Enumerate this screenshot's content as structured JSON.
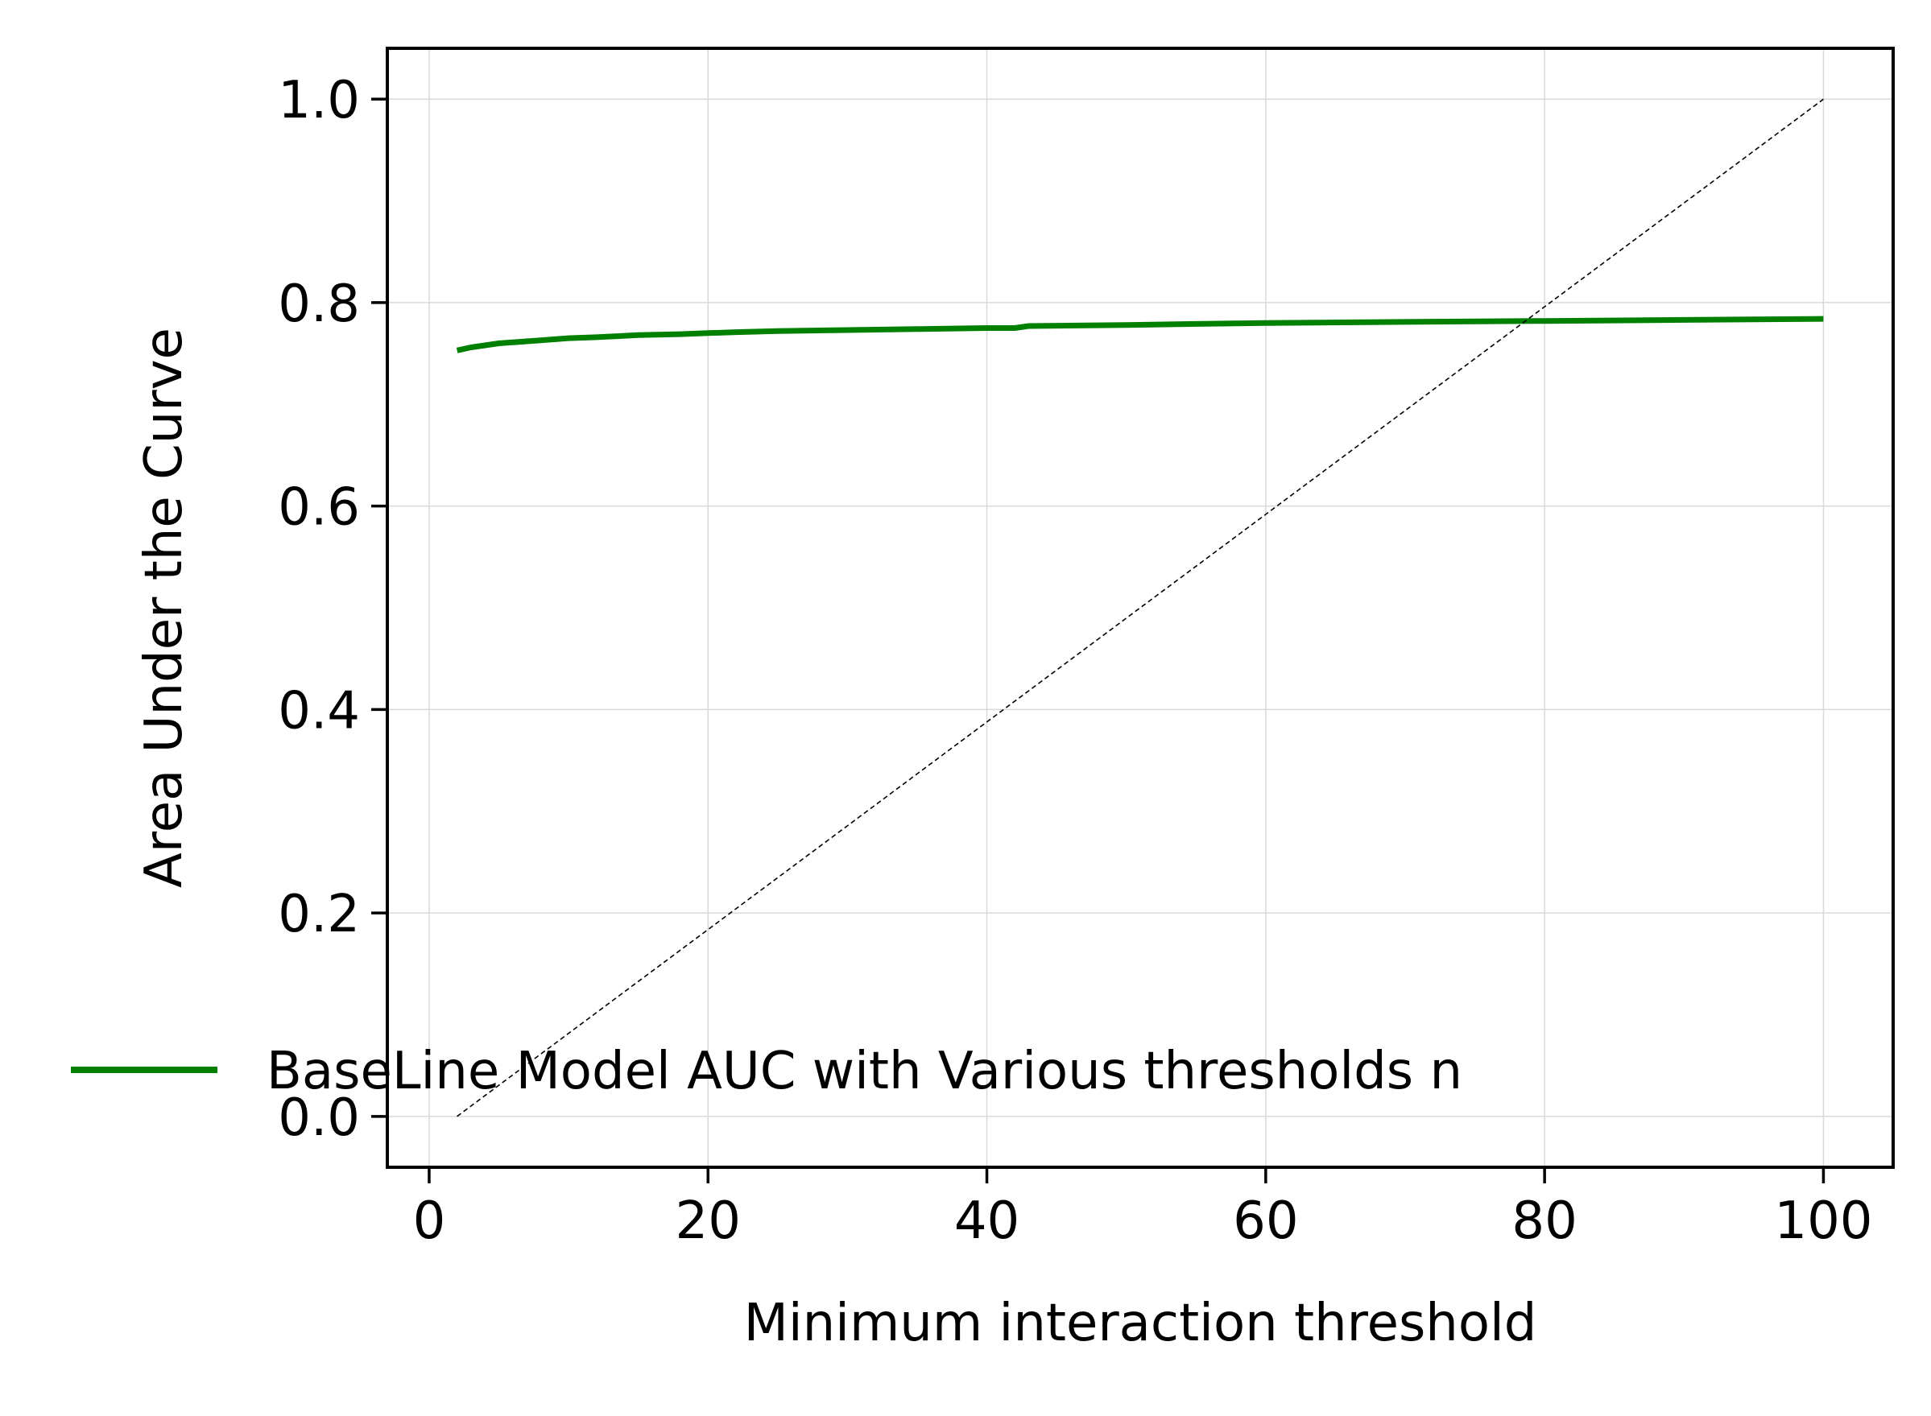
{
  "chart_data": {
    "type": "line",
    "title": "",
    "xlabel": "Minimum interaction threshold",
    "ylabel": "Area Under the Curve",
    "xlim": [
      -3,
      105
    ],
    "ylim": [
      -0.05,
      1.05
    ],
    "xticks": [
      0,
      20,
      40,
      60,
      80,
      100
    ],
    "xtick_labels": [
      "0",
      "20",
      "40",
      "60",
      "80",
      "100"
    ],
    "yticks": [
      0.0,
      0.2,
      0.4,
      0.6,
      0.8,
      1.0
    ],
    "ytick_labels": [
      "0.0",
      "0.2",
      "0.4",
      "0.6",
      "0.8",
      "1.0"
    ],
    "grid": true,
    "legend_position": "lower-left",
    "series": [
      {
        "name": "BaseLine Model AUC with Various thresholds n",
        "color": "#008000",
        "style": "solid",
        "x": [
          2,
          3,
          4,
          5,
          6,
          8,
          10,
          12,
          15,
          18,
          20,
          22,
          25,
          30,
          35,
          40,
          42,
          43,
          50,
          55,
          60,
          70,
          80,
          90,
          100
        ],
        "y": [
          0.753,
          0.756,
          0.758,
          0.76,
          0.761,
          0.763,
          0.765,
          0.766,
          0.768,
          0.769,
          0.77,
          0.771,
          0.772,
          0.773,
          0.774,
          0.775,
          0.775,
          0.777,
          0.778,
          0.779,
          0.78,
          0.781,
          0.782,
          0.783,
          0.784
        ]
      },
      {
        "color": "#000000",
        "style": "dashed",
        "x": [
          2,
          100
        ],
        "y": [
          0.0,
          1.0
        ]
      }
    ]
  }
}
